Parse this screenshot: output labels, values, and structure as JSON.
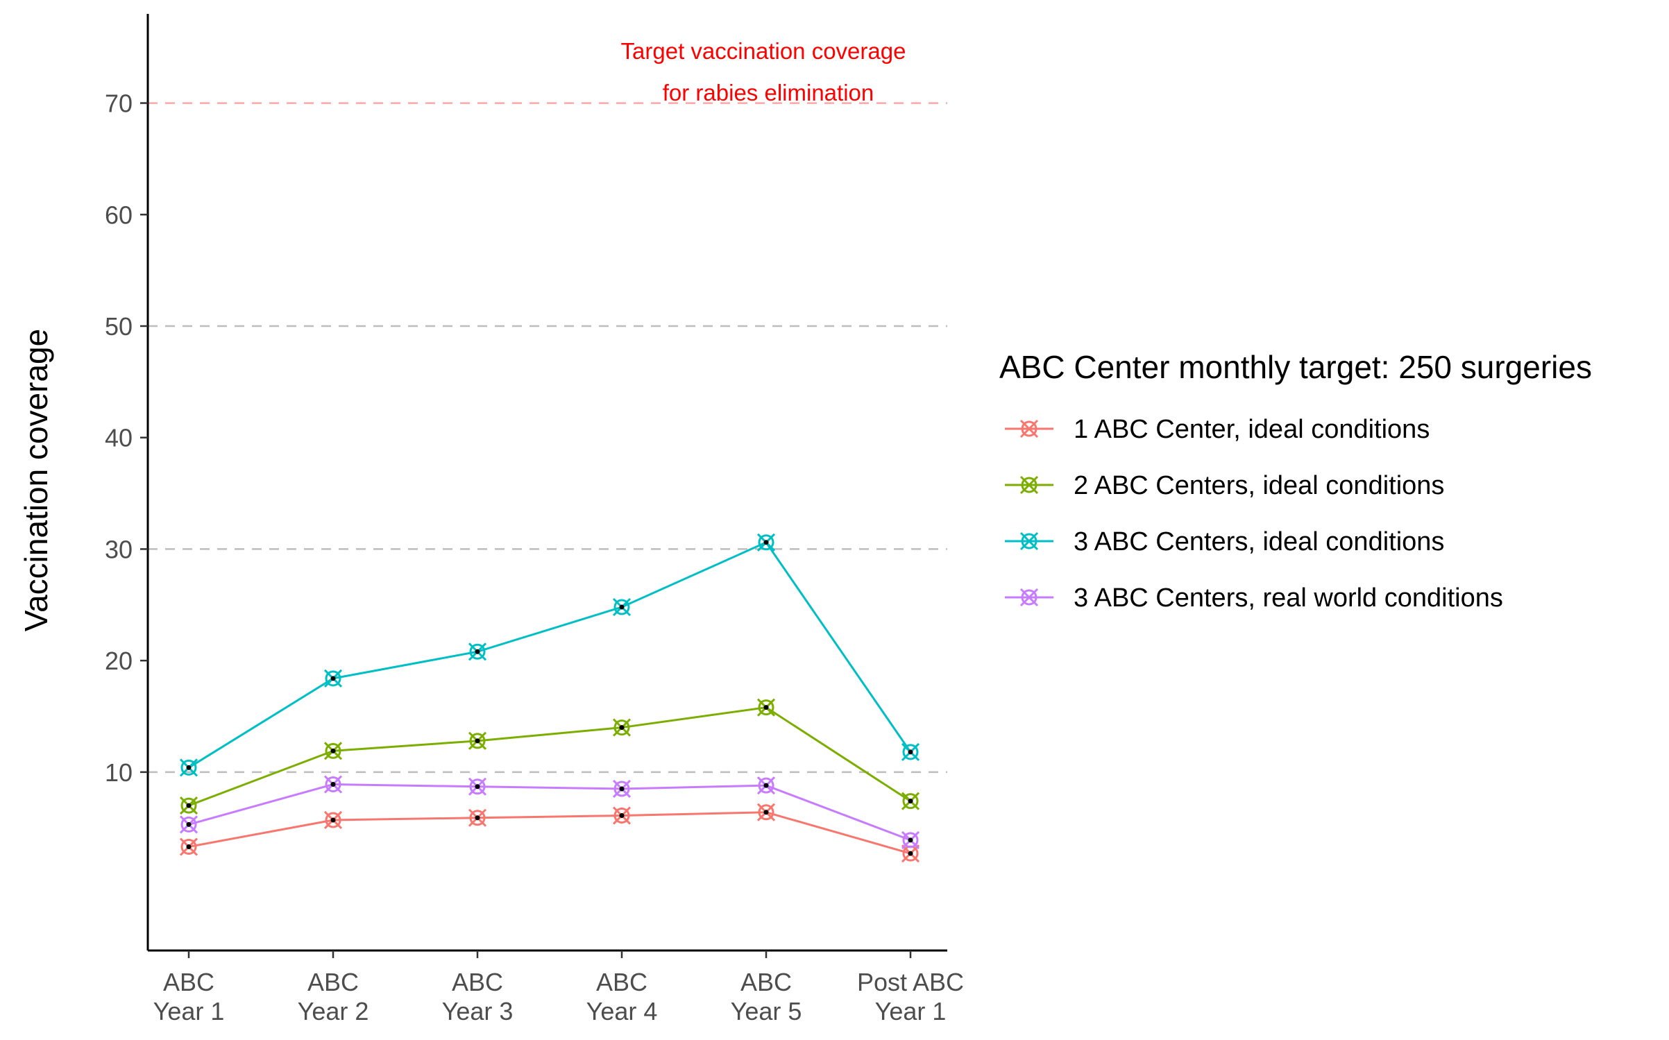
{
  "chart_data": {
    "type": "line",
    "title": "",
    "xlabel": "",
    "ylabel": "Vaccination coverage",
    "ylim": [
      -6,
      78
    ],
    "yticks": [
      10,
      20,
      30,
      40,
      50,
      60,
      70
    ],
    "categories": [
      [
        "ABC",
        "Year 1"
      ],
      [
        "ABC",
        "Year 2"
      ],
      [
        "ABC",
        "Year 3"
      ],
      [
        "ABC",
        "Year 4"
      ],
      [
        "ABC",
        "Year 5"
      ],
      [
        "Post ABC",
        "Year 1"
      ]
    ],
    "gridlines": [
      10,
      30,
      50
    ],
    "grid_color": "#bdbdbd",
    "target": {
      "value": 70,
      "label_line1": "Target vaccination coverage",
      "label_line2": "for rabies elimination",
      "color": "#ff0000"
    },
    "legend": {
      "title": "ABC Center monthly target: 250 surgeries",
      "position": "right"
    },
    "series": [
      {
        "name": "1 ABC Center, ideal conditions",
        "color": "#f8766d",
        "values": [
          3.3,
          5.7,
          5.9,
          6.1,
          6.4,
          2.7
        ]
      },
      {
        "name": "2 ABC Centers, ideal conditions",
        "color": "#7cae00",
        "values": [
          7.0,
          11.9,
          12.8,
          14.0,
          15.8,
          7.4
        ]
      },
      {
        "name": "3 ABC Centers, ideal conditions",
        "color": "#00bfc4",
        "values": [
          10.4,
          18.4,
          20.8,
          24.8,
          30.6,
          11.8
        ]
      },
      {
        "name": "3 ABC Centers, real world conditions",
        "color": "#c77cff",
        "values": [
          5.3,
          8.9,
          8.7,
          8.5,
          8.8,
          3.9
        ]
      }
    ]
  }
}
